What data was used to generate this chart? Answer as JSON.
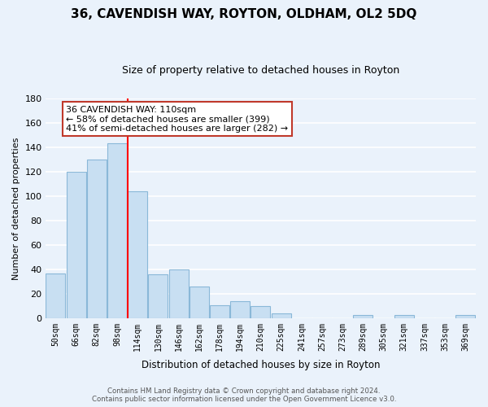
{
  "title": "36, CAVENDISH WAY, ROYTON, OLDHAM, OL2 5DQ",
  "subtitle": "Size of property relative to detached houses in Royton",
  "xlabel": "Distribution of detached houses by size in Royton",
  "ylabel": "Number of detached properties",
  "bar_labels": [
    "50sqm",
    "66sqm",
    "82sqm",
    "98sqm",
    "114sqm",
    "130sqm",
    "146sqm",
    "162sqm",
    "178sqm",
    "194sqm",
    "210sqm",
    "225sqm",
    "241sqm",
    "257sqm",
    "273sqm",
    "289sqm",
    "305sqm",
    "321sqm",
    "337sqm",
    "353sqm",
    "369sqm"
  ],
  "bar_values": [
    37,
    120,
    130,
    143,
    104,
    36,
    40,
    26,
    11,
    14,
    10,
    4,
    0,
    0,
    0,
    3,
    0,
    3,
    0,
    0,
    3
  ],
  "bar_color": "#c8dff2",
  "bar_edge_color": "#8ab8d8",
  "vline_color": "red",
  "vline_x": 4.5,
  "annotation_text": "36 CAVENDISH WAY: 110sqm\n← 58% of detached houses are smaller (399)\n41% of semi-detached houses are larger (282) →",
  "annotation_box_color": "white",
  "annotation_box_edge": "#c0392b",
  "ylim": [
    0,
    180
  ],
  "yticks": [
    0,
    20,
    40,
    60,
    80,
    100,
    120,
    140,
    160,
    180
  ],
  "footer_line1": "Contains HM Land Registry data © Crown copyright and database right 2024.",
  "footer_line2": "Contains public sector information licensed under the Open Government Licence v3.0.",
  "bg_color": "#eaf2fb",
  "grid_color": "white"
}
